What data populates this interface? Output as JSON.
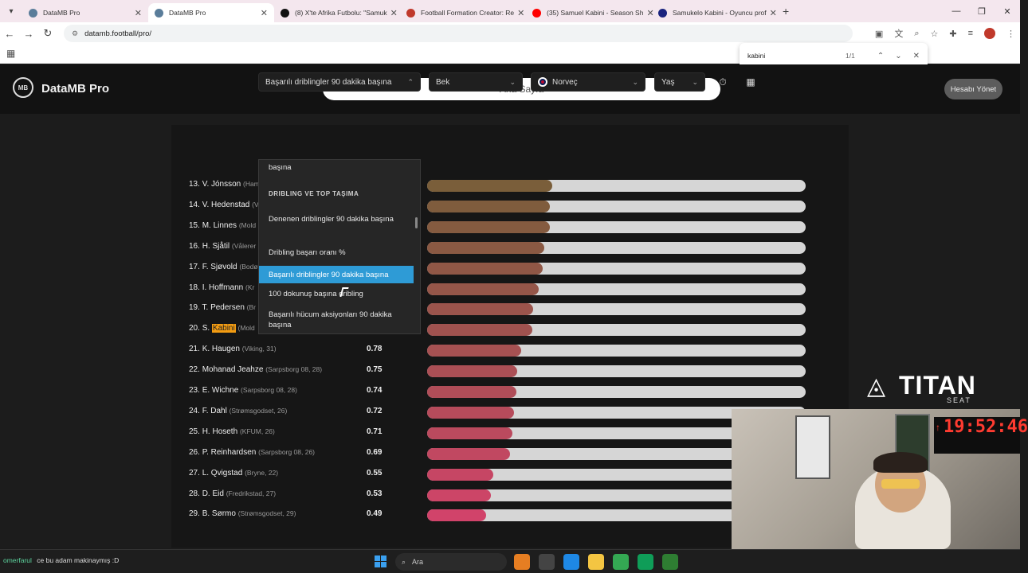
{
  "browser": {
    "tabs": [
      {
        "label": "DataMB Pro",
        "active": false,
        "color": "#5a7d9a"
      },
      {
        "label": "DataMB Pro",
        "active": true,
        "color": "#5a7d9a"
      },
      {
        "label": "(8) X'te Afrika Futbolu: \"Samuk",
        "active": false,
        "color": "#111111"
      },
      {
        "label": "Football Formation Creator: Re",
        "active": false,
        "color": "#c0392b"
      },
      {
        "label": "(35) Samuel Kabini - Season Sh",
        "active": false,
        "color": "#ff0000"
      },
      {
        "label": "Samukelo Kabini - Oyuncu prof",
        "active": false,
        "color": "#1a237e"
      }
    ],
    "url": "datamb.football/pro/",
    "find": {
      "query": "kabini",
      "count": "1/1"
    }
  },
  "app": {
    "logo": "DataMB Pro",
    "logo_mark": "MB",
    "home": "Ana Sayfa",
    "account": "Hesabı Yönet"
  },
  "filters": {
    "metric": "Başarılı driblingler 90 dakika başına",
    "position": "Bek",
    "country": "Norveç",
    "age": "Yaş"
  },
  "dropdown": {
    "items": [
      {
        "label": "başına",
        "type": "item"
      },
      {
        "label": "DRIBLING VE TOP TAŞIMA",
        "type": "group"
      },
      {
        "label": "Denenen driblingler 90 dakika başına",
        "type": "item"
      },
      {
        "label": "Dribling başarı oranı %",
        "type": "item"
      },
      {
        "label": "Başarılı driblingler 90 dakika başına",
        "type": "selected"
      },
      {
        "label": "100 dokunuş başına dribling",
        "type": "item"
      },
      {
        "label": "Başarılı hücum aksiyonları 90 dakika başına",
        "type": "item"
      }
    ]
  },
  "players": [
    {
      "rank": "13.",
      "name": "V. Jónsson",
      "team": "(Ham",
      "value": "",
      "fill": 0.33
    },
    {
      "rank": "14.",
      "name": "V. Hedenstad",
      "team": "(V",
      "value": "",
      "fill": 0.325
    },
    {
      "rank": "15.",
      "name": "M. Linnes",
      "team": "(Mold",
      "value": "",
      "fill": 0.325
    },
    {
      "rank": "16.",
      "name": "H. Sjåtil",
      "team": "(Vålerer",
      "value": "",
      "fill": 0.31
    },
    {
      "rank": "17.",
      "name": "F. Sjøvold",
      "team": "(Bodø",
      "value": "",
      "fill": 0.305
    },
    {
      "rank": "18.",
      "name": "I. Hoffmann",
      "team": "(Kr",
      "value": "",
      "fill": 0.295
    },
    {
      "rank": "19.",
      "name": "T. Pedersen",
      "team": "(Br",
      "value": "",
      "fill": 0.28
    },
    {
      "rank": "20.",
      "name": "S. ",
      "highlight": "Kabini",
      "team": "(Mold",
      "value": "",
      "fill": 0.278
    },
    {
      "rank": "21.",
      "name": "K. Haugen",
      "team": "(Viking, 31)",
      "value": "0.78",
      "fill": 0.248
    },
    {
      "rank": "22.",
      "name": "Mohanad Jeahze",
      "team": "(Sarpsborg 08, 28)",
      "value": "0.75",
      "fill": 0.238
    },
    {
      "rank": "23.",
      "name": "E. Wichne",
      "team": "(Sarpsborg 08, 28)",
      "value": "0.74",
      "fill": 0.235
    },
    {
      "rank": "24.",
      "name": "F. Dahl",
      "team": "(Strømsgodset, 26)",
      "value": "0.72",
      "fill": 0.229
    },
    {
      "rank": "25.",
      "name": "H. Hoseth",
      "team": "(KFUM, 26)",
      "value": "0.71",
      "fill": 0.225
    },
    {
      "rank": "26.",
      "name": "P. Reinhardsen",
      "team": "(Sarpsborg 08, 26)",
      "value": "0.69",
      "fill": 0.219
    },
    {
      "rank": "27.",
      "name": "L. Qvigstad",
      "team": "(Bryne, 22)",
      "value": "0.55",
      "fill": 0.175
    },
    {
      "rank": "28.",
      "name": "D. Eid",
      "team": "(Fredrikstad, 27)",
      "value": "0.53",
      "fill": 0.168
    },
    {
      "rank": "29.",
      "name": "B. Sørmo",
      "team": "(Strømsgodset, 29)",
      "value": "0.49",
      "fill": 0.155
    }
  ],
  "colors": {
    "bar_top": "#7a52c9",
    "bar_bottom": "#d1436a",
    "selected": "#2e9bd6"
  },
  "overlay": {
    "brand": "TITAN",
    "brand_sub": "SEAT",
    "clock": "19:52:46",
    "chat_user": "omerfarul",
    "chat_msg": "ce bu adam makinaymış :D",
    "taskbar_search": "Ara"
  }
}
